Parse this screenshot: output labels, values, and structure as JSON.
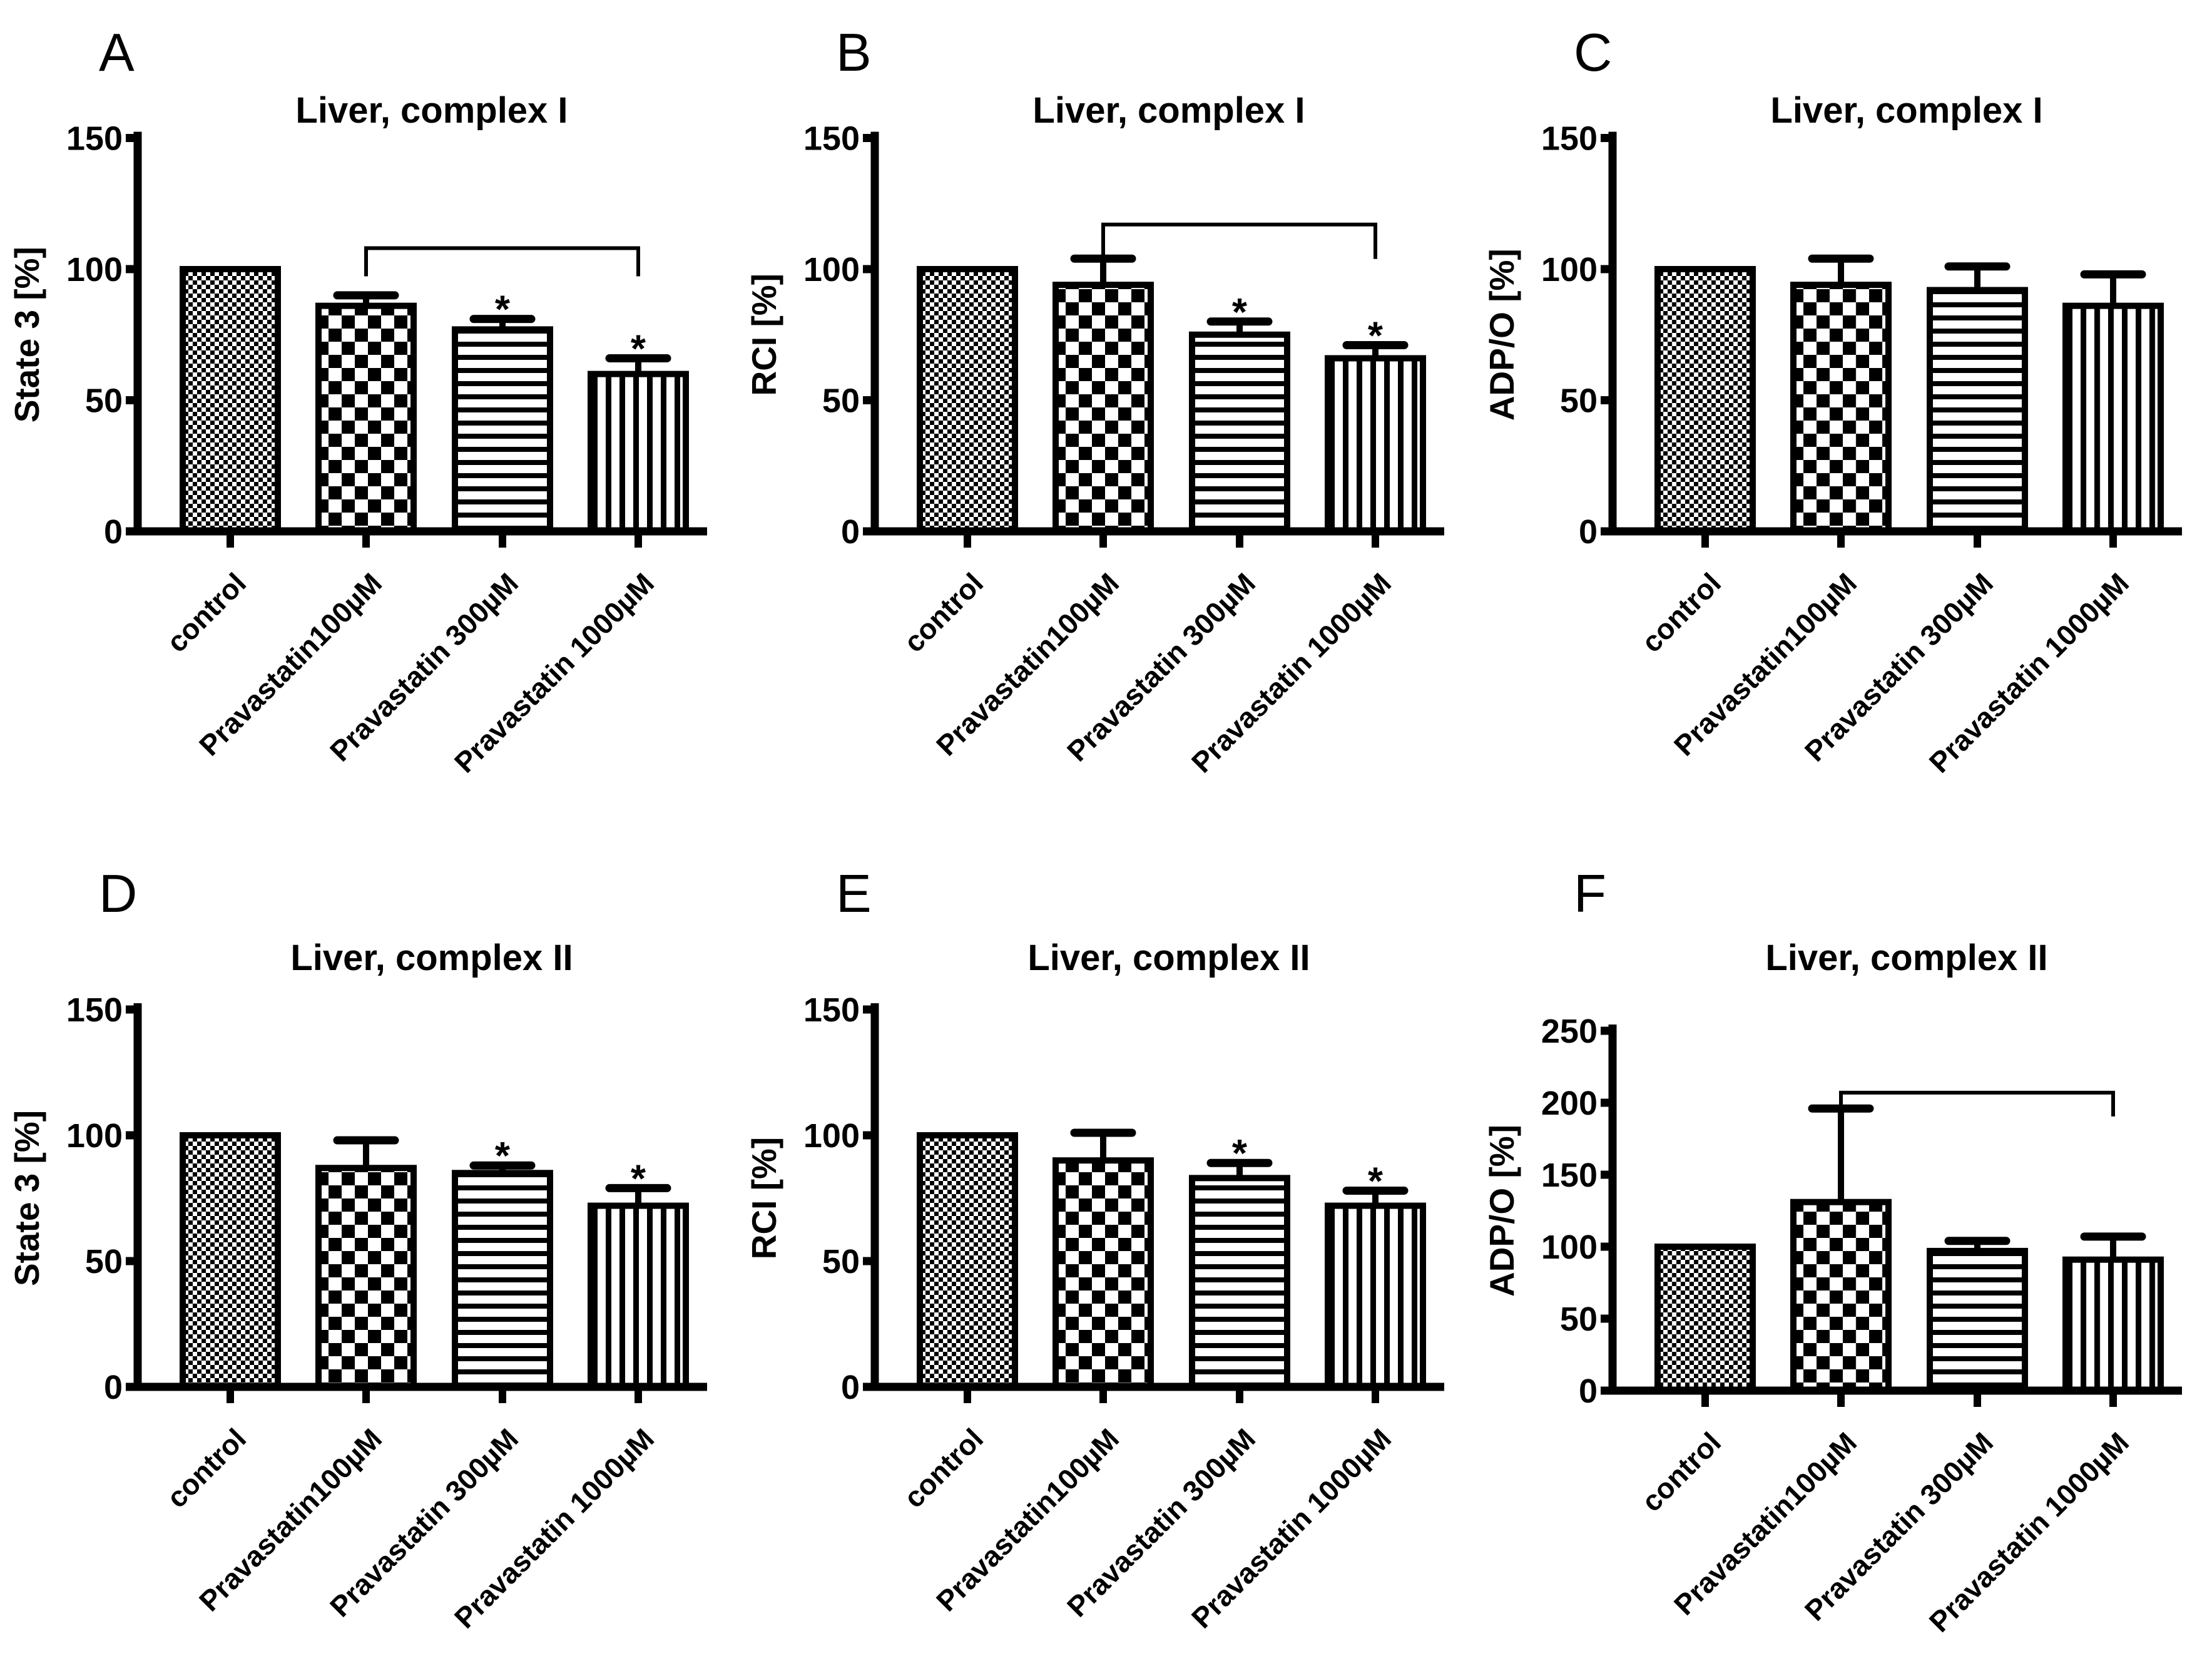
{
  "figure": {
    "background_color": "#ffffff",
    "ink_color": "#000000",
    "pattern_names": [
      "checker-fine",
      "checker-coarse",
      "hlines",
      "vlines"
    ]
  },
  "chart_data": [
    {
      "type": "bar",
      "panel_letter": "A",
      "title": "Liver, complex I",
      "ylabel": "State 3 [%]",
      "ylim": [
        0,
        150
      ],
      "yticks": [
        0,
        50,
        100,
        150
      ],
      "categories": [
        "control",
        "Pravastatin100µM",
        "Pravastatin 300µM",
        "Pravastatin 1000µM"
      ],
      "values": [
        100,
        86,
        77,
        60
      ],
      "errors_up": [
        0,
        4,
        4,
        6
      ],
      "significance": [
        "",
        "",
        "*",
        "*"
      ],
      "bracket": {
        "from": 1,
        "to": 3,
        "y_value": 108,
        "tick_down": 45
      }
    },
    {
      "type": "bar",
      "panel_letter": "B",
      "title": "Liver, complex I",
      "ylabel": "RCI  [%]",
      "ylim": [
        0,
        150
      ],
      "yticks": [
        0,
        50,
        100,
        150
      ],
      "categories": [
        "control",
        "Pravastatin100µM",
        "Pravastatin 300µM",
        "Pravastatin 1000µM"
      ],
      "values": [
        100,
        94,
        75,
        66
      ],
      "errors_up": [
        0,
        10,
        5,
        5
      ],
      "significance": [
        "",
        "",
        "*",
        "*"
      ],
      "bracket": {
        "from": 1,
        "to": 3,
        "y_value": 117,
        "tick_down": 55
      }
    },
    {
      "type": "bar",
      "panel_letter": "C",
      "title": "Liver, complex I",
      "ylabel": "ADP/O  [%]",
      "ylim": [
        0,
        150
      ],
      "yticks": [
        0,
        50,
        100,
        150
      ],
      "categories": [
        "control",
        "Pravastatin100µM",
        "Pravastatin 300µM",
        "Pravastatin 1000µM"
      ],
      "values": [
        100,
        94,
        92,
        86
      ],
      "errors_up": [
        0,
        10,
        9,
        12
      ],
      "significance": [
        "",
        "",
        "",
        ""
      ],
      "bracket": null
    },
    {
      "type": "bar",
      "panel_letter": "D",
      "title": "Liver, complex II",
      "ylabel": "State 3 [%]",
      "ylim": [
        0,
        150
      ],
      "yticks": [
        0,
        50,
        100,
        150
      ],
      "categories": [
        "control",
        "Pravastatin100µM",
        "Pravastatin 300µM",
        "Pravastatin 1000µM"
      ],
      "values": [
        100,
        87,
        85,
        72
      ],
      "errors_up": [
        0,
        11,
        3,
        7
      ],
      "significance": [
        "",
        "",
        "*",
        "*"
      ],
      "bracket": null
    },
    {
      "type": "bar",
      "panel_letter": "E",
      "title": "Liver, complex II",
      "ylabel": "RCI  [%]",
      "ylim": [
        0,
        150
      ],
      "yticks": [
        0,
        50,
        100,
        150
      ],
      "categories": [
        "control",
        "Pravastatin100µM",
        "Pravastatin 300µM",
        "Pravastatin 1000µM"
      ],
      "values": [
        100,
        90,
        83,
        72
      ],
      "errors_up": [
        0,
        11,
        6,
        6
      ],
      "significance": [
        "",
        "",
        "*",
        "*"
      ],
      "bracket": null
    },
    {
      "type": "bar",
      "panel_letter": "F",
      "title": "Liver, complex II",
      "ylabel": "ADP/O  [%]",
      "ylim": [
        0,
        250
      ],
      "yticks": [
        0,
        50,
        100,
        150,
        200,
        250
      ],
      "categories": [
        "control",
        "Pravastatin100µM",
        "Pravastatin 300µM",
        "Pravastatin 1000µM"
      ],
      "values": [
        100,
        131,
        97,
        91
      ],
      "errors_up": [
        0,
        65,
        7,
        16
      ],
      "significance": [
        "",
        "",
        "",
        ""
      ],
      "bracket": {
        "from": 1,
        "to": 3,
        "y_value": 207,
        "tick_down": 38
      }
    }
  ]
}
